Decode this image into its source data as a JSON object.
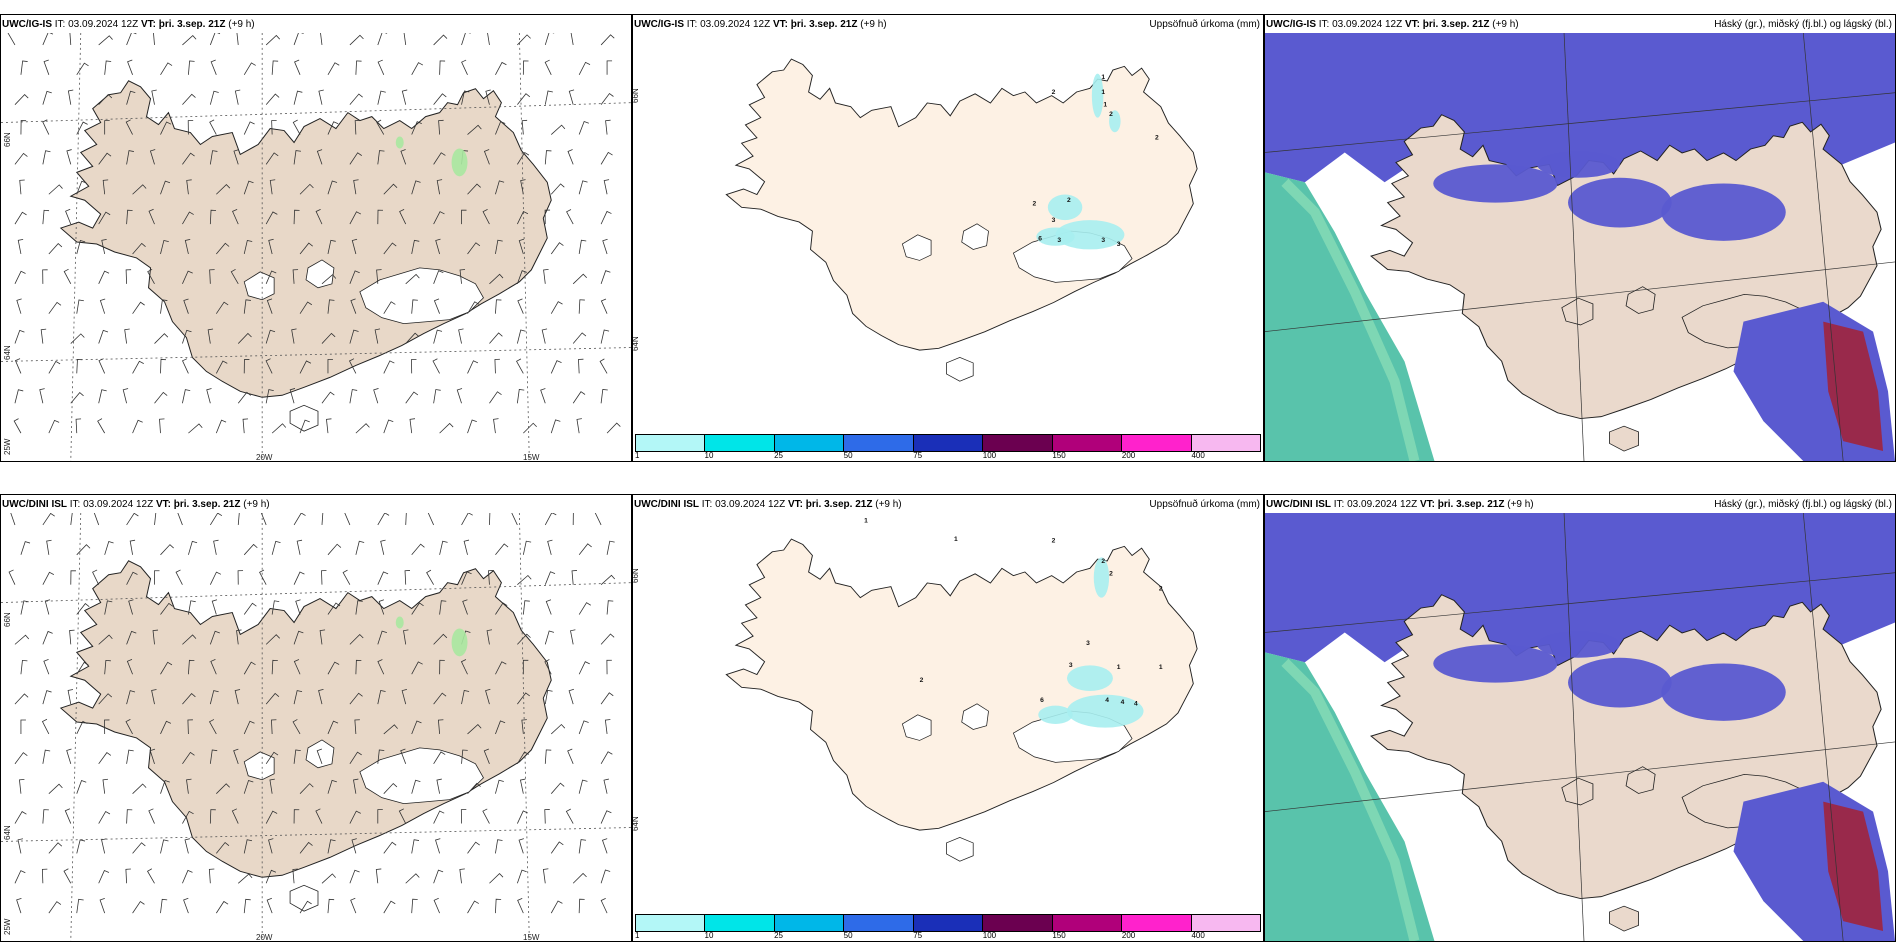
{
  "rows": [
    {
      "model": "UWC/IG-IS",
      "it_label": "IT:",
      "it_value": "03.09.2024 12Z",
      "vt_label": "VT:",
      "vt_value": "þri. 3.sep. 21Z",
      "lead": "(+9 h)"
    },
    {
      "model": "UWC/DINI ISL",
      "it_label": "IT:",
      "it_value": "03.09.2024 12Z",
      "vt_label": "VT:",
      "vt_value": "þri. 3.sep. 21Z",
      "lead": "(+9 h)"
    }
  ],
  "precip_title": "Uppsöfnuð úrkoma (mm)",
  "cloud_title": "Háský (gr.), miðský (fj.bl.) og lágský (bl.)",
  "wind_axes": {
    "lat_66": "66N",
    "lat_64": "64N",
    "lon_25": "25W",
    "lon_20": "20W",
    "lon_15": "15W"
  },
  "precip_axes": {
    "lat_66": "66N",
    "lat_64": "64N"
  },
  "legend": {
    "ticks": [
      "1",
      "10",
      "25",
      "50",
      "75",
      "100",
      "150",
      "200",
      "400"
    ],
    "colors": [
      "#b3f7f7",
      "#00e5e8",
      "#00b7e8",
      "#2e6be8",
      "#1a2fb8",
      "#6b0050",
      "#b0007a",
      "#ff22cc",
      "#f7b8f0"
    ]
  },
  "precip_labels_top": [
    "1",
    "1",
    "1",
    "2",
    "2",
    "2",
    "2",
    "2",
    "3",
    "3",
    "3",
    "3",
    "6"
  ],
  "precip_labels_bottom": [
    "1",
    "1",
    "1",
    "1",
    "2",
    "2",
    "2",
    "2",
    "2",
    "3",
    "3",
    "4",
    "4",
    "4",
    "6"
  ],
  "colors": {
    "land_wind": "#e8d8c8",
    "land_precip": "#fdf1e4",
    "land_cloud": "#ead9cc",
    "glacier": "#ffffff",
    "high_cloud": "#3cb89c",
    "mid_cloud": "#5a5ad0",
    "low_cloud": "#a0243c",
    "precip_light": "#a7eef0"
  }
}
